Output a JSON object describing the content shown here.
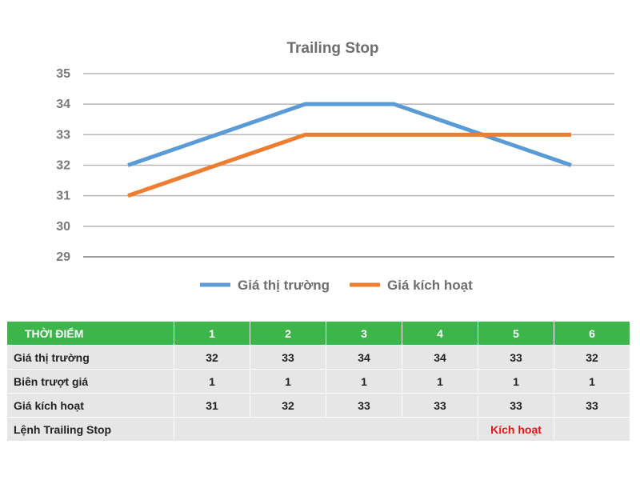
{
  "chart_data": {
    "type": "line",
    "title": "Trailing Stop",
    "x": [
      1,
      2,
      3,
      4,
      5,
      6
    ],
    "ylim": [
      29,
      35
    ],
    "yticks": [
      29,
      30,
      31,
      32,
      33,
      34,
      35
    ],
    "grid": true,
    "legend_position": "bottom",
    "series": [
      {
        "name": "Giá thị trường",
        "values": [
          32,
          33,
          34,
          34,
          33,
          32
        ],
        "color": "#5b9bd5"
      },
      {
        "name": "Giá kích hoạt",
        "values": [
          31,
          32,
          33,
          33,
          33,
          33
        ],
        "color": "#ed7d31"
      }
    ]
  },
  "table": {
    "header_label": "THỜI ĐIỂM",
    "columns": [
      "1",
      "2",
      "3",
      "4",
      "5",
      "6"
    ],
    "rows": [
      {
        "label": "Giá thị trường",
        "cells": [
          "32",
          "33",
          "34",
          "34",
          "33",
          "32"
        ]
      },
      {
        "label": "Biên trượt giá",
        "cells": [
          "1",
          "1",
          "1",
          "1",
          "1",
          "1"
        ]
      },
      {
        "label": "Giá kích hoạt",
        "cells": [
          "31",
          "32",
          "33",
          "33",
          "33",
          "33"
        ]
      }
    ],
    "order_row": {
      "label": "Lệnh Trailing Stop",
      "status": "Kích hoạt",
      "status_color": "#e8141a"
    }
  }
}
